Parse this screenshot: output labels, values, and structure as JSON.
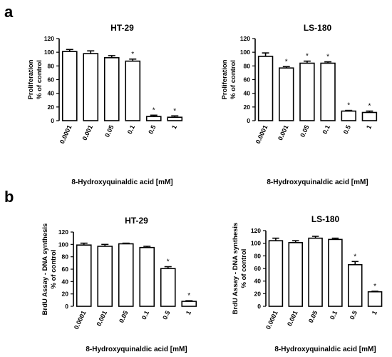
{
  "panels": [
    {
      "letter": "a"
    },
    {
      "letter": "b"
    }
  ],
  "chart_data": [
    {
      "type": "bar",
      "panel": "a",
      "title": "HT-29",
      "xlabel": "8-Hydroxyquinaldic acid [mM]",
      "ylabel_lines": [
        "Proliferation",
        "% of control"
      ],
      "categories": [
        "0.0001",
        "0.001",
        "0.05",
        "0.1",
        "0.5",
        "1"
      ],
      "values": [
        101,
        98,
        92,
        87,
        6,
        5
      ],
      "errors": [
        3,
        4,
        3,
        3,
        2,
        2
      ],
      "significant": [
        false,
        false,
        false,
        true,
        true,
        true
      ],
      "significance_marker": "*",
      "ylim": [
        0,
        120
      ],
      "yticks": [
        "0",
        "20",
        "40",
        "60",
        "80",
        "100",
        "120"
      ]
    },
    {
      "type": "bar",
      "panel": "a",
      "title": "LS-180",
      "xlabel": "8-Hydroxyquinaldic acid [mM]",
      "ylabel_lines": [
        "Proliferation",
        "% of control"
      ],
      "categories": [
        "0.0001",
        "0.001",
        "0.05",
        "0.1",
        "0.5",
        "1"
      ],
      "values": [
        94,
        77,
        84,
        84,
        14,
        12
      ],
      "errors": [
        5,
        2,
        3,
        2,
        1,
        2
      ],
      "significant": [
        false,
        true,
        true,
        true,
        true,
        true
      ],
      "significance_marker": "*",
      "ylim": [
        0,
        120
      ],
      "yticks": [
        "0",
        "20",
        "40",
        "60",
        "80",
        "100",
        "120"
      ]
    },
    {
      "type": "bar",
      "panel": "b",
      "title": "HT-29",
      "xlabel": "8-Hydroxyquinaldic acid [mM]",
      "ylabel_lines": [
        "BrdU Assay - DNA synthesis",
        "% of control"
      ],
      "categories": [
        "0.0001",
        "0.001",
        "0.05",
        "0.1",
        "0.5",
        "1"
      ],
      "values": [
        99,
        97,
        101,
        95,
        61,
        8
      ],
      "errors": [
        3,
        3,
        1,
        2,
        3,
        1
      ],
      "significant": [
        false,
        false,
        false,
        false,
        true,
        true
      ],
      "significance_marker": "*",
      "ylim": [
        0,
        120
      ],
      "yticks": [
        "0",
        "20",
        "40",
        "60",
        "80",
        "100",
        "120"
      ]
    },
    {
      "type": "bar",
      "panel": "b",
      "title": "LS-180",
      "xlabel": "8-Hydroxyquinaldic acid [mM]",
      "ylabel_lines": [
        "BrdU Assay - DNA synthesis",
        "% of control"
      ],
      "categories": [
        "0.0001",
        "0.001",
        "0.05",
        "0.1",
        "0.5",
        "1"
      ],
      "values": [
        104,
        101,
        108,
        106,
        66,
        23
      ],
      "errors": [
        4,
        3,
        3,
        2,
        5,
        1
      ],
      "significant": [
        false,
        false,
        false,
        false,
        true,
        true
      ],
      "significance_marker": "*",
      "ylim": [
        0,
        120
      ],
      "yticks": [
        "0",
        "20",
        "40",
        "60",
        "80",
        "100",
        "120"
      ]
    }
  ]
}
